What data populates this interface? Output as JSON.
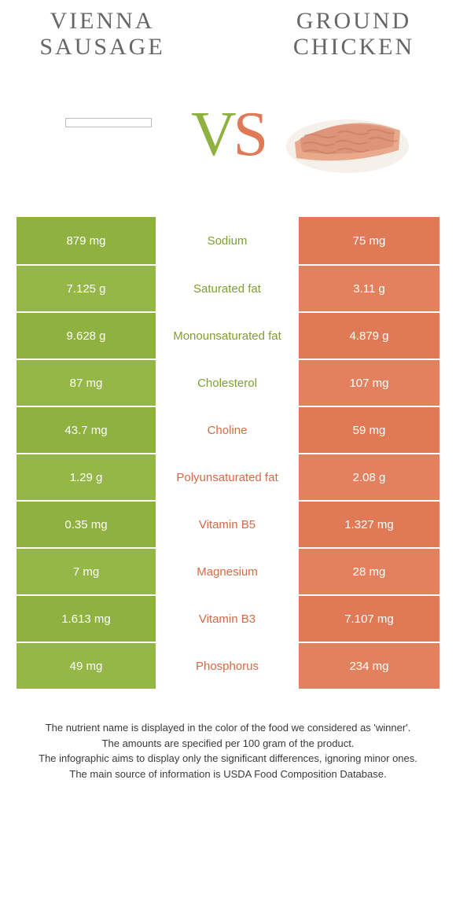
{
  "colors": {
    "left_bg": "#8eb140",
    "left_bg_alt": "#94b747",
    "right_bg": "#e07a56",
    "right_bg_alt": "#e3815e",
    "mid_green": "#7da030",
    "mid_orange": "#d66a44",
    "title_color": "#676767"
  },
  "food_left": {
    "title": "VIENNA\nSAUSAGE"
  },
  "food_right": {
    "title": "GROUND\nCHICKEN"
  },
  "vs": {
    "v": "V",
    "s": "S"
  },
  "rows": [
    {
      "left": "879 mg",
      "label": "Sodium",
      "right": "75 mg",
      "winner": "left"
    },
    {
      "left": "7.125 g",
      "label": "Saturated fat",
      "right": "3.11 g",
      "winner": "left"
    },
    {
      "left": "9.628 g",
      "label": "Monounsaturated fat",
      "right": "4.879 g",
      "winner": "left"
    },
    {
      "left": "87 mg",
      "label": "Cholesterol",
      "right": "107 mg",
      "winner": "left"
    },
    {
      "left": "43.7 mg",
      "label": "Choline",
      "right": "59 mg",
      "winner": "right"
    },
    {
      "left": "1.29 g",
      "label": "Polyunsaturated fat",
      "right": "2.08 g",
      "winner": "right"
    },
    {
      "left": "0.35 mg",
      "label": "Vitamin B5",
      "right": "1.327 mg",
      "winner": "right"
    },
    {
      "left": "7 mg",
      "label": "Magnesium",
      "right": "28 mg",
      "winner": "right"
    },
    {
      "left": "1.613 mg",
      "label": "Vitamin B3",
      "right": "7.107 mg",
      "winner": "right"
    },
    {
      "left": "49 mg",
      "label": "Phosphorus",
      "right": "234 mg",
      "winner": "right"
    }
  ],
  "footer": {
    "line1": "The nutrient name is displayed in the color of the food we considered as 'winner'.",
    "line2": "The amounts are specified per 100 gram of the product.",
    "line3": "The infographic aims to display only the significant differences, ignoring minor ones.",
    "line4": "The main source of information is USDA Food Composition Database."
  }
}
